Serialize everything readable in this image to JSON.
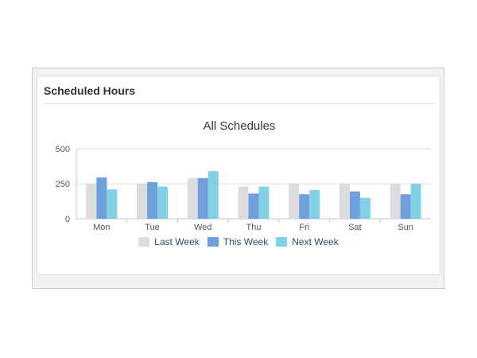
{
  "panel": {
    "title": "Scheduled Hours"
  },
  "chart_data": {
    "type": "bar",
    "title": "All Schedules",
    "categories": [
      "Mon",
      "Tue",
      "Wed",
      "Thu",
      "Fri",
      "Sat",
      "Sun"
    ],
    "series": [
      {
        "name": "Last Week",
        "color": "#dcdcdc",
        "values": [
          250,
          250,
          290,
          230,
          250,
          250,
          250
        ]
      },
      {
        "name": "This Week",
        "color": "#6f9fdc",
        "values": [
          295,
          262,
          290,
          180,
          175,
          195,
          175
        ]
      },
      {
        "name": "Next Week",
        "color": "#83d1e6",
        "values": [
          210,
          230,
          340,
          230,
          205,
          150,
          250
        ]
      }
    ],
    "yticks": [
      "0",
      "250",
      "500"
    ],
    "ylim": [
      0,
      500
    ],
    "grid": true,
    "legend": "bottom"
  }
}
